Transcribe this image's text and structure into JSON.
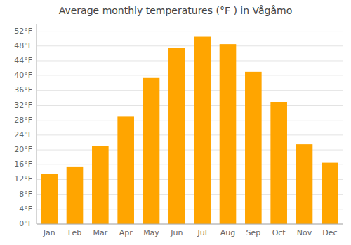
{
  "chart_data": {
    "type": "bar",
    "title": "Average monthly temperatures (°F ) in Vågåmo",
    "categories": [
      "Jan",
      "Feb",
      "Mar",
      "Apr",
      "May",
      "Jun",
      "Jul",
      "Aug",
      "Sep",
      "Oct",
      "Nov",
      "Dec"
    ],
    "values": [
      13.5,
      15.5,
      21.0,
      29.0,
      39.5,
      47.5,
      50.5,
      48.5,
      41.0,
      33.0,
      21.5,
      16.5
    ],
    "color": "#FFA500",
    "ylim": [
      0,
      54
    ],
    "yticks": [
      {
        "value": 0,
        "label": "0°F"
      },
      {
        "value": 4,
        "label": "4°F"
      },
      {
        "value": 8,
        "label": "8°F"
      },
      {
        "value": 12,
        "label": "12°F"
      },
      {
        "value": 16,
        "label": "16°F"
      },
      {
        "value": 20,
        "label": "20°F"
      },
      {
        "value": 24,
        "label": "24°F"
      },
      {
        "value": 28,
        "label": "28°F"
      },
      {
        "value": 32,
        "label": "32°F"
      },
      {
        "value": 36,
        "label": "36°F"
      },
      {
        "value": 40,
        "label": "40°F"
      },
      {
        "value": 44,
        "label": "44°F"
      },
      {
        "value": 48,
        "label": "48°F"
      },
      {
        "value": 52,
        "label": "52°F"
      }
    ],
    "grid": true
  }
}
